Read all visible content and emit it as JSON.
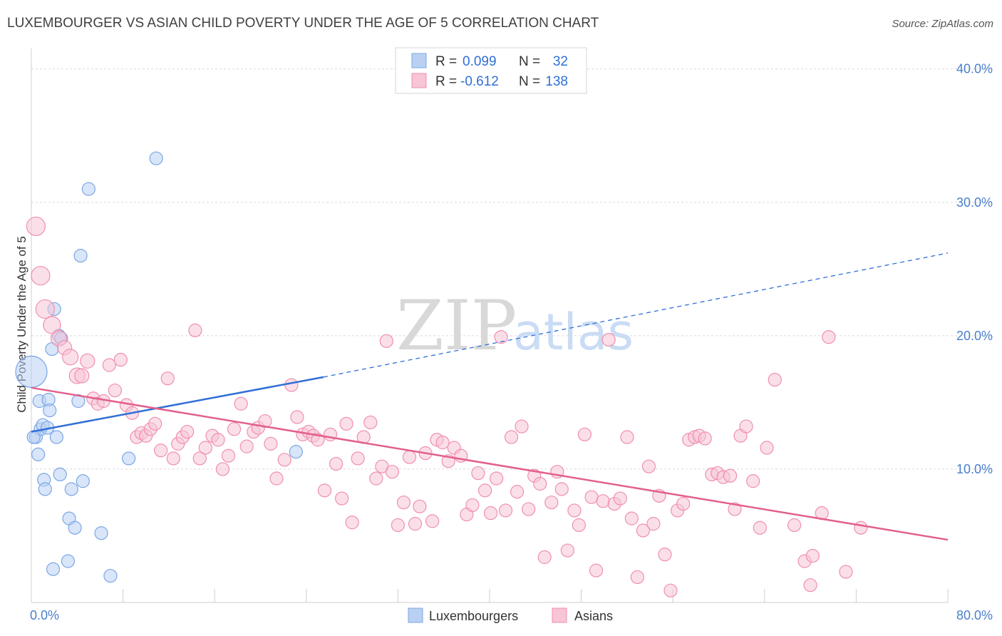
{
  "chart_data": {
    "type": "scatter",
    "title": "LUXEMBOURGER VS ASIAN CHILD POVERTY UNDER THE AGE OF 5 CORRELATION CHART",
    "source": "Source: ZipAtlas.com",
    "xlabel": "",
    "ylabel": "Child Poverty Under the Age of 5",
    "xlim": [
      0,
      80
    ],
    "ylim": [
      0,
      41
    ],
    "x_tick_labels": [
      "0.0%",
      "80.0%"
    ],
    "y_ticks": [
      10,
      20,
      30,
      40
    ],
    "y_tick_labels": [
      "10.0%",
      "20.0%",
      "30.0%",
      "40.0%"
    ],
    "watermark": "ZIPatlas",
    "legend": {
      "rows": [
        {
          "name": "Luxembourgers",
          "r_label": "R =",
          "r": "0.099",
          "n_label": "N =",
          "n": "32"
        },
        {
          "name": "Asians",
          "r_label": "R =",
          "r": "-0.612",
          "n_label": "N =",
          "n": "138"
        }
      ]
    },
    "series": [
      {
        "name": "Luxembourgers",
        "color": "#7aa7e6",
        "fill": "#b9d0f2",
        "trend": {
          "x0": 0,
          "y0": 12.8,
          "x1": 25.5,
          "y1": 16.9,
          "dash_to_x": 80,
          "dash_to_y": 26.2,
          "color": "#2f6fd6"
        },
        "points": [
          [
            0,
            17.3,
            22
          ],
          [
            0.4,
            12.4,
            9
          ],
          [
            0.6,
            11.1,
            9
          ],
          [
            0.7,
            15.1,
            9
          ],
          [
            0.8,
            13.0,
            9
          ],
          [
            1.0,
            13.3,
            9
          ],
          [
            1.1,
            9.2,
            9
          ],
          [
            1.2,
            8.5,
            9
          ],
          [
            1.4,
            13.1,
            9
          ],
          [
            1.5,
            15.2,
            9
          ],
          [
            1.6,
            14.4,
            9
          ],
          [
            1.8,
            19.0,
            9
          ],
          [
            1.9,
            2.5,
            9
          ],
          [
            2.0,
            22.0,
            9
          ],
          [
            2.2,
            12.4,
            9
          ],
          [
            2.4,
            20.0,
            9
          ],
          [
            2.5,
            9.6,
            9
          ],
          [
            2.6,
            19.8,
            9
          ],
          [
            3.2,
            3.1,
            9
          ],
          [
            3.3,
            6.3,
            9
          ],
          [
            3.5,
            8.5,
            9
          ],
          [
            3.8,
            5.6,
            9
          ],
          [
            4.1,
            15.1,
            9
          ],
          [
            4.3,
            26.0,
            9
          ],
          [
            4.5,
            9.1,
            9
          ],
          [
            5.0,
            31.0,
            9
          ],
          [
            6.1,
            5.2,
            9
          ],
          [
            6.9,
            2.0,
            9
          ],
          [
            8.5,
            10.8,
            9
          ],
          [
            10.9,
            33.3,
            9
          ],
          [
            0.2,
            12.4,
            9
          ],
          [
            23.1,
            11.3,
            9
          ]
        ]
      },
      {
        "name": "Asians",
        "color": "#ef8fae",
        "fill": "#f7c5d5",
        "trend": {
          "x0": 0,
          "y0": 16.1,
          "x1": 80,
          "y1": 4.7,
          "color": "#e2608d"
        },
        "points": [
          [
            0.4,
            28.2,
            13
          ],
          [
            0.8,
            24.5,
            13
          ],
          [
            1.2,
            22.0,
            13
          ],
          [
            1.8,
            20.8,
            12
          ],
          [
            2.4,
            19.8,
            11
          ],
          [
            2.9,
            19.1,
            10
          ],
          [
            3.4,
            18.4,
            11
          ],
          [
            4.0,
            17.0,
            11
          ],
          [
            4.4,
            17.0,
            10
          ],
          [
            4.9,
            18.1,
            10
          ],
          [
            5.4,
            15.3,
            9
          ],
          [
            5.8,
            14.9,
            9
          ],
          [
            6.3,
            15.1,
            9
          ],
          [
            6.8,
            17.8,
            9
          ],
          [
            7.3,
            15.9,
            9
          ],
          [
            7.8,
            18.2,
            9
          ],
          [
            8.3,
            14.8,
            9
          ],
          [
            8.8,
            14.2,
            9
          ],
          [
            9.2,
            12.4,
            9
          ],
          [
            9.6,
            12.7,
            9
          ],
          [
            10.0,
            12.5,
            9
          ],
          [
            10.4,
            13.0,
            9
          ],
          [
            10.8,
            13.4,
            9
          ],
          [
            11.3,
            11.4,
            9
          ],
          [
            11.9,
            16.8,
            9
          ],
          [
            12.4,
            10.8,
            9
          ],
          [
            12.8,
            11.9,
            9
          ],
          [
            13.2,
            12.4,
            9
          ],
          [
            13.6,
            12.8,
            9
          ],
          [
            14.3,
            20.4,
            9
          ],
          [
            14.7,
            10.8,
            9
          ],
          [
            15.2,
            11.6,
            9
          ],
          [
            15.8,
            12.5,
            9
          ],
          [
            16.3,
            12.2,
            9
          ],
          [
            16.7,
            10.0,
            9
          ],
          [
            17.2,
            11.0,
            9
          ],
          [
            17.7,
            13.0,
            9
          ],
          [
            18.3,
            14.9,
            9
          ],
          [
            18.8,
            11.7,
            9
          ],
          [
            19.4,
            12.8,
            9
          ],
          [
            19.8,
            13.1,
            9
          ],
          [
            20.4,
            13.6,
            9
          ],
          [
            20.9,
            11.9,
            9
          ],
          [
            21.4,
            9.3,
            9
          ],
          [
            22.1,
            10.7,
            9
          ],
          [
            22.7,
            16.3,
            9
          ],
          [
            23.2,
            13.9,
            9
          ],
          [
            23.7,
            12.6,
            9
          ],
          [
            24.2,
            12.8,
            9
          ],
          [
            24.6,
            12.5,
            9
          ],
          [
            25.0,
            12.2,
            9
          ],
          [
            25.6,
            8.4,
            9
          ],
          [
            26.1,
            12.6,
            9
          ],
          [
            26.6,
            10.4,
            9
          ],
          [
            27.1,
            7.8,
            9
          ],
          [
            27.5,
            13.4,
            9
          ],
          [
            28.0,
            6.0,
            9
          ],
          [
            28.5,
            10.8,
            9
          ],
          [
            29.0,
            12.4,
            9
          ],
          [
            29.6,
            13.5,
            9
          ],
          [
            30.1,
            9.3,
            9
          ],
          [
            30.6,
            10.2,
            9
          ],
          [
            31.0,
            19.6,
            9
          ],
          [
            31.5,
            9.8,
            9
          ],
          [
            32.0,
            5.8,
            9
          ],
          [
            32.5,
            7.5,
            9
          ],
          [
            33.0,
            10.9,
            9
          ],
          [
            33.5,
            5.9,
            9
          ],
          [
            33.9,
            7.2,
            9
          ],
          [
            34.4,
            11.2,
            9
          ],
          [
            35.0,
            6.1,
            9
          ],
          [
            35.4,
            12.2,
            9
          ],
          [
            35.9,
            12.0,
            9
          ],
          [
            36.4,
            10.6,
            9
          ],
          [
            36.9,
            11.6,
            9
          ],
          [
            37.5,
            11.0,
            9
          ],
          [
            38.0,
            6.6,
            9
          ],
          [
            38.5,
            7.3,
            9
          ],
          [
            39.0,
            9.7,
            9
          ],
          [
            39.6,
            8.4,
            9
          ],
          [
            40.1,
            6.7,
            9
          ],
          [
            40.6,
            9.3,
            9
          ],
          [
            41.0,
            19.9,
            9
          ],
          [
            41.4,
            6.9,
            9
          ],
          [
            41.9,
            12.4,
            9
          ],
          [
            42.4,
            8.3,
            9
          ],
          [
            42.8,
            13.2,
            9
          ],
          [
            43.4,
            7.0,
            9
          ],
          [
            43.9,
            9.5,
            9
          ],
          [
            44.4,
            8.9,
            9
          ],
          [
            44.8,
            3.4,
            9
          ],
          [
            45.4,
            7.5,
            9
          ],
          [
            45.9,
            9.8,
            9
          ],
          [
            46.3,
            8.5,
            9
          ],
          [
            46.8,
            3.9,
            9
          ],
          [
            47.4,
            6.9,
            9
          ],
          [
            47.8,
            5.8,
            9
          ],
          [
            48.3,
            12.6,
            9
          ],
          [
            48.9,
            7.9,
            9
          ],
          [
            49.3,
            2.4,
            9
          ],
          [
            49.9,
            7.6,
            9
          ],
          [
            50.4,
            19.7,
            9
          ],
          [
            50.9,
            7.4,
            9
          ],
          [
            51.4,
            7.8,
            9
          ],
          [
            52.0,
            12.4,
            9
          ],
          [
            52.4,
            6.3,
            9
          ],
          [
            52.9,
            1.9,
            9
          ],
          [
            53.4,
            5.4,
            9
          ],
          [
            53.9,
            10.2,
            9
          ],
          [
            54.3,
            5.9,
            9
          ],
          [
            54.8,
            8.0,
            9
          ],
          [
            55.3,
            3.6,
            9
          ],
          [
            55.8,
            0.9,
            9
          ],
          [
            56.4,
            6.9,
            9
          ],
          [
            56.9,
            7.4,
            9
          ],
          [
            57.4,
            12.2,
            9
          ],
          [
            57.9,
            12.4,
            9
          ],
          [
            58.3,
            12.5,
            9
          ],
          [
            58.8,
            12.3,
            9
          ],
          [
            59.4,
            9.6,
            9
          ],
          [
            59.9,
            9.7,
            9
          ],
          [
            60.4,
            9.4,
            9
          ],
          [
            61.0,
            9.5,
            9
          ],
          [
            61.4,
            7.0,
            9
          ],
          [
            61.9,
            12.5,
            9
          ],
          [
            62.4,
            13.2,
            9
          ],
          [
            63.0,
            9.1,
            9
          ],
          [
            63.6,
            5.6,
            9
          ],
          [
            64.2,
            11.6,
            9
          ],
          [
            64.9,
            16.7,
            9
          ],
          [
            66.6,
            5.8,
            9
          ],
          [
            67.5,
            3.1,
            9
          ],
          [
            68.2,
            3.5,
            9
          ],
          [
            69.0,
            6.7,
            9
          ],
          [
            69.6,
            19.9,
            9
          ],
          [
            71.1,
            2.3,
            9
          ],
          [
            72.4,
            5.6,
            9
          ],
          [
            68.0,
            1.3,
            9
          ]
        ]
      }
    ]
  }
}
